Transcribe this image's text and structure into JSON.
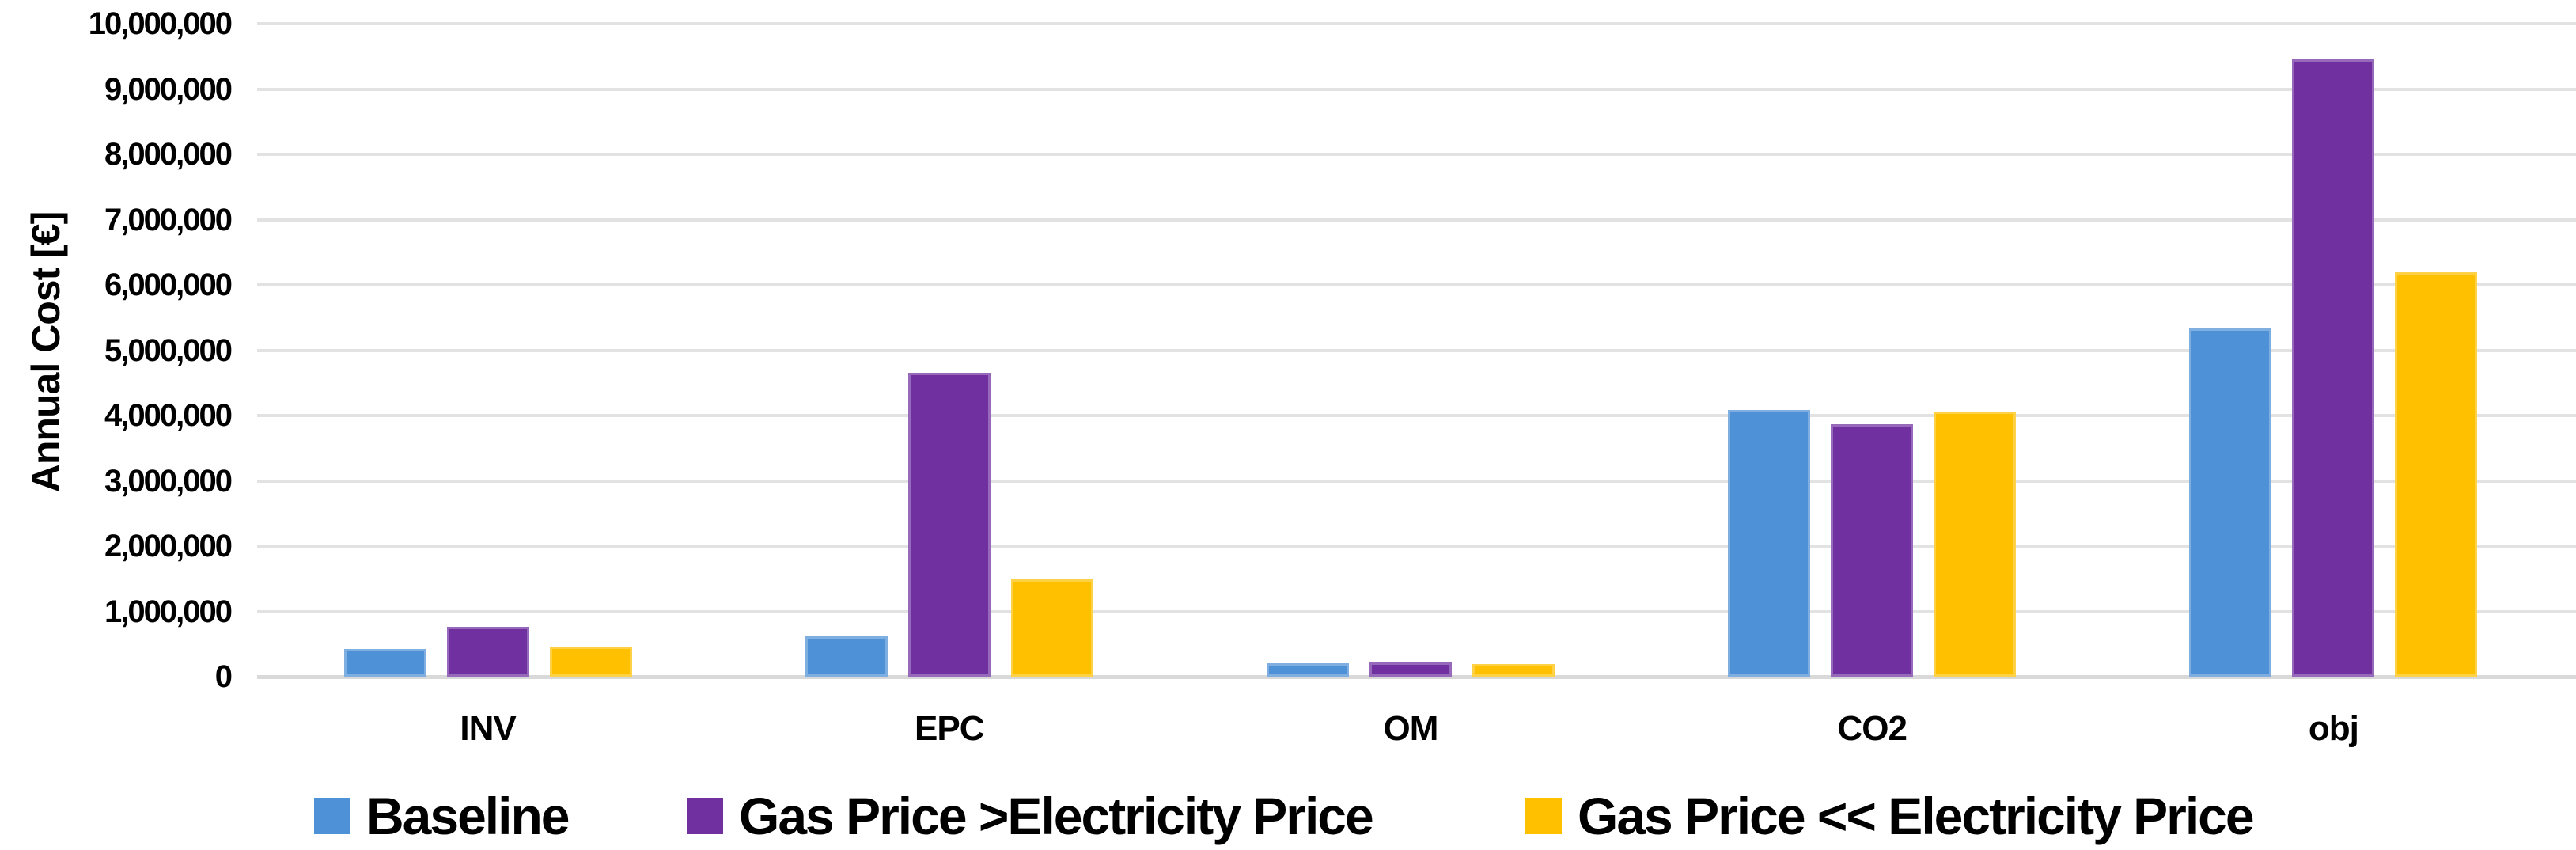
{
  "chart_data": {
    "type": "bar",
    "title": "",
    "xlabel": "",
    "ylabel": "Annual Cost [€]",
    "categories": [
      "INV",
      "EPC",
      "OM",
      "CO2",
      "obj"
    ],
    "series": [
      {
        "name": "Baseline",
        "color": "#4E91D6",
        "values": [
          430000,
          620000,
          210000,
          4080000,
          5330000
        ]
      },
      {
        "name": "Gas Price >Electricity Price",
        "color": "#7030A0",
        "values": [
          760000,
          4650000,
          220000,
          3870000,
          9450000
        ]
      },
      {
        "name": "Gas Price << Electricity Price",
        "color": "#FFC000",
        "values": [
          460000,
          1490000,
          200000,
          4060000,
          6200000
        ]
      }
    ],
    "ylim": [
      0,
      10000000
    ],
    "y_tick_step": 1000000,
    "y_tick_labels": [
      "0",
      "1,000,000",
      "2,000,000",
      "3,000,000",
      "4,000,000",
      "5,000,000",
      "6,000,000",
      "7,000,000",
      "8,000,000",
      "9,000,000",
      "10,000,000"
    ],
    "grid": "horizontal",
    "legend_position": "bottom"
  },
  "colors": {
    "background": "#FFFFFF",
    "gridline": "#E2E2E2",
    "axis_line": "#D9D9D9",
    "text": "#000000"
  }
}
